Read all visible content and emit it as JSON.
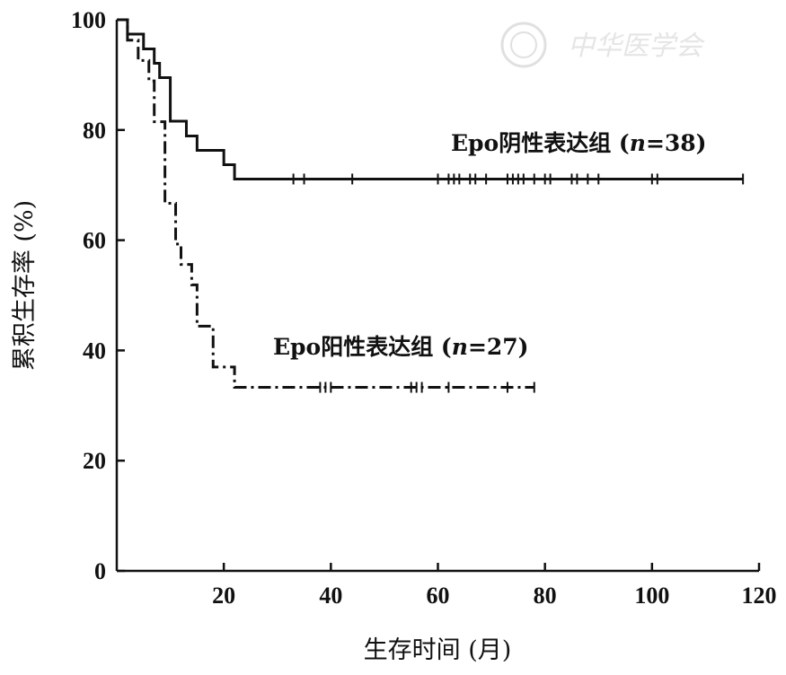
{
  "watermark": {
    "text": "中华医学会",
    "color": "#cccccc"
  },
  "chart_data": {
    "type": "line",
    "subtype": "kaplan-meier",
    "xlabel": "生存时间 (月)",
    "ylabel": "累积生存率 (%)",
    "xlim": [
      0,
      120
    ],
    "ylim": [
      0,
      100
    ],
    "xticks": [
      20,
      40,
      60,
      80,
      100,
      120
    ],
    "yticks": [
      0,
      20,
      40,
      60,
      80,
      100
    ],
    "grid": false,
    "series": [
      {
        "name": "Epo阴性表达组",
        "label_parts": {
          "prefix": "Epo阴性表达组 (",
          "n_symbol": "n",
          "n_value": "=38)"
        },
        "line_style": "solid",
        "color": "#111111",
        "steps": [
          [
            0,
            100
          ],
          [
            2,
            97.4
          ],
          [
            5,
            94.7
          ],
          [
            7,
            92.1
          ],
          [
            8,
            89.5
          ],
          [
            10,
            81.6
          ],
          [
            13,
            78.9
          ],
          [
            15,
            76.3
          ],
          [
            20,
            73.7
          ],
          [
            22,
            71.1
          ],
          [
            117,
            71.1
          ]
        ],
        "censored": [
          33,
          35,
          44,
          60,
          62,
          63,
          64,
          66,
          67,
          69,
          73,
          74,
          75,
          76,
          78,
          80,
          81,
          85,
          86,
          88,
          90,
          100,
          101,
          117
        ]
      },
      {
        "name": "Epo阳性表达组",
        "label_parts": {
          "prefix": "Epo阳性表达组 (",
          "n_symbol": "n",
          "n_value": "=27)"
        },
        "line_style": "dash-dot",
        "color": "#111111",
        "steps": [
          [
            0,
            100
          ],
          [
            2,
            96.3
          ],
          [
            4,
            92.6
          ],
          [
            6,
            88.9
          ],
          [
            7,
            81.5
          ],
          [
            9,
            66.7
          ],
          [
            11,
            59.3
          ],
          [
            12,
            55.6
          ],
          [
            14,
            51.9
          ],
          [
            15,
            44.4
          ],
          [
            18,
            37.0
          ],
          [
            20,
            37.0
          ],
          [
            22,
            33.3
          ],
          [
            78,
            33.3
          ]
        ],
        "censored": [
          38,
          39,
          40,
          55,
          56,
          57,
          62,
          73,
          78
        ]
      }
    ]
  }
}
